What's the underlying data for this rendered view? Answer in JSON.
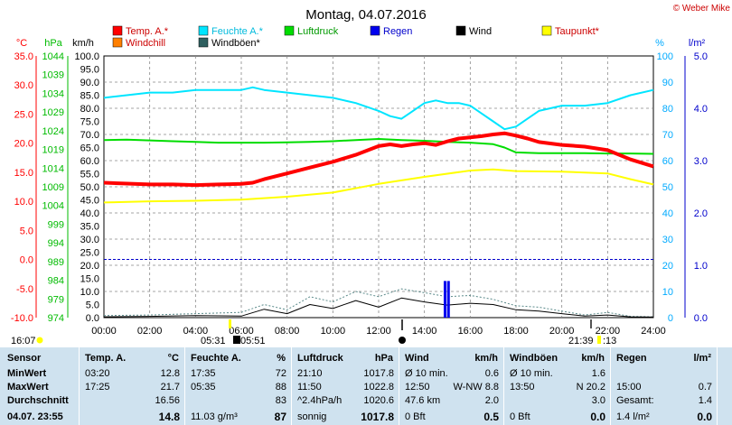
{
  "title": "Montag, 04.07.2016",
  "copyright": "© Weber Mike",
  "colors": {
    "temp": "#ff0000",
    "humidity": "#00e5ff",
    "pressure": "#00dd00",
    "rain": "#0000ee",
    "wind": "#000000",
    "dewpoint": "#ffff00",
    "windchill": "#ff7f00",
    "gust": "#2f6060",
    "axis_temp": "#ff0000",
    "axis_pressure": "#00bb00",
    "axis_right": "#00aaff",
    "axis_rain": "#0000cc",
    "table_bg": "#cfe2ef"
  },
  "axes": {
    "temp_unit": "°C",
    "pressure_unit": "hPa",
    "wind_unit": "km/h",
    "humidity_unit": "%",
    "rain_unit": "l/m²",
    "temp_ticks": [
      "35.0",
      "30.0",
      "25.0",
      "20.0",
      "15.0",
      "10.0",
      "5.0",
      "0.0",
      "-5.0",
      "-10.0"
    ],
    "pressure_ticks": [
      "1044",
      "1039",
      "1034",
      "1029",
      "1024",
      "1019",
      "1014",
      "1009",
      "1004",
      "999",
      "994",
      "989",
      "984",
      "979",
      "974"
    ],
    "wind_ticks": [
      "100.0",
      "95.0",
      "90.0",
      "85.0",
      "80.0",
      "75.0",
      "70.0",
      "65.0",
      "60.0",
      "55.0",
      "50.0",
      "45.0",
      "40.0",
      "35.0",
      "30.0",
      "25.0",
      "20.0",
      "15.0",
      "10.0",
      "5.0",
      "0.0"
    ],
    "humidity_ticks": [
      "100",
      "90",
      "80",
      "70",
      "60",
      "50",
      "40",
      "30",
      "20",
      "10",
      "0"
    ],
    "rain_ticks": [
      "5.0",
      "4.0",
      "3.0",
      "2.0",
      "1.0",
      "0.0"
    ],
    "time_ticks": [
      "00:00",
      "02:00",
      "04:00",
      "06:00",
      "08:00",
      "10:00",
      "12:00",
      "14:00",
      "16:00",
      "18:00",
      "20:00",
      "22:00",
      "24:00"
    ]
  },
  "sun": {
    "left_time": "16:07",
    "sunrise": "05:31",
    "sunrise2": "05:51",
    "sunset": "21:39",
    "sunset2": ":13"
  },
  "legend": [
    {
      "key": "temp",
      "label": "Temp. A.*"
    },
    {
      "key": "humidity",
      "label": "Feuchte A.*"
    },
    {
      "key": "pressure",
      "label": "Luftdruck"
    },
    {
      "key": "rain",
      "label": "Regen"
    },
    {
      "key": "wind",
      "label": "Wind"
    },
    {
      "key": "dewpoint",
      "label": "Taupunkt*"
    },
    {
      "key": "windchill",
      "label": "Windchill"
    },
    {
      "key": "gust",
      "label": "Windböen*"
    }
  ],
  "chart_data": {
    "type": "line",
    "title": "Montag, 04.07.2016",
    "x_range_hours": [
      0,
      24
    ],
    "series": [
      {
        "name": "Temp. A.*",
        "axis": "°C",
        "x": [
          0,
          2,
          3,
          4,
          5,
          6,
          6.5,
          7,
          8,
          9,
          10,
          11,
          12,
          12.5,
          13,
          13.5,
          14,
          14.5,
          15,
          15.5,
          16,
          16.5,
          17,
          17.5,
          18,
          18.5,
          19,
          20,
          21,
          22,
          23,
          24
        ],
        "values": [
          13.2,
          12.9,
          12.9,
          12.8,
          12.9,
          13.0,
          13.2,
          13.8,
          14.8,
          15.8,
          16.8,
          18.0,
          19.5,
          19.8,
          19.5,
          19.8,
          20.0,
          19.7,
          20.3,
          20.8,
          21.0,
          21.2,
          21.5,
          21.7,
          21.3,
          20.8,
          20.2,
          19.7,
          19.4,
          18.8,
          17.2,
          16.0
        ]
      },
      {
        "name": "Feuchte A.*",
        "axis": "%",
        "x": [
          0,
          1,
          2,
          3,
          4,
          5,
          6,
          6.5,
          7,
          8,
          9,
          10,
          11,
          12,
          12.5,
          13,
          13.5,
          14,
          14.5,
          15,
          15.5,
          16,
          16.5,
          17,
          17.5,
          18,
          18.5,
          19,
          20,
          21,
          22,
          23,
          24
        ],
        "values": [
          84,
          85,
          86,
          86,
          87,
          87,
          87,
          88,
          87,
          86,
          85,
          84,
          82,
          79,
          77,
          76,
          79,
          82,
          83,
          82,
          82,
          81,
          78,
          75,
          72,
          73,
          76,
          79,
          81,
          81,
          82,
          85,
          87
        ]
      },
      {
        "name": "Luftdruck",
        "axis": "hPa",
        "x": [
          0,
          1,
          2,
          3,
          4,
          5,
          6,
          7,
          8,
          9,
          10,
          11,
          12,
          13,
          14,
          15,
          16,
          17,
          17.5,
          18,
          19,
          20,
          21,
          22,
          23,
          24
        ],
        "values": [
          1021.5,
          1021.6,
          1021.4,
          1021.2,
          1021.0,
          1020.8,
          1020.8,
          1020.8,
          1020.9,
          1021.0,
          1021.2,
          1021.5,
          1021.8,
          1021.5,
          1021.3,
          1021.0,
          1020.8,
          1020.4,
          1019.5,
          1018.2,
          1018.0,
          1018.0,
          1018.0,
          1017.9,
          1017.9,
          1017.8
        ]
      },
      {
        "name": "Taupunkt*",
        "axis": "°C",
        "x": [
          0,
          2,
          4,
          6,
          8,
          10,
          12,
          14,
          16,
          17,
          18,
          20,
          22,
          23,
          24
        ],
        "values": [
          9.8,
          10.0,
          10.1,
          10.3,
          10.8,
          11.5,
          13.0,
          14.2,
          15.3,
          15.5,
          15.2,
          15.1,
          14.8,
          13.8,
          12.9
        ]
      },
      {
        "name": "Wind",
        "axis": "km/h",
        "x": [
          0,
          2,
          4,
          6,
          7,
          8,
          9,
          10,
          11,
          12,
          13,
          14,
          15,
          16,
          17,
          18,
          19,
          20,
          21,
          22,
          23,
          24
        ],
        "values": [
          0.3,
          0.5,
          0.8,
          0.6,
          3.2,
          1.5,
          5.0,
          3.5,
          6.5,
          4.0,
          7.5,
          6.0,
          4.8,
          5.5,
          5.0,
          3.0,
          2.5,
          1.5,
          0.6,
          1.0,
          0.3,
          0.2
        ]
      },
      {
        "name": "Windböen*",
        "axis": "km/h",
        "x": [
          0,
          2,
          4,
          6,
          7,
          8,
          9,
          10,
          11,
          12,
          13,
          14,
          15,
          16,
          17,
          18,
          19,
          20,
          21,
          22,
          23,
          24
        ],
        "values": [
          0.8,
          1.0,
          1.5,
          2.0,
          5.0,
          3.0,
          8.0,
          6.0,
          10.0,
          8.0,
          11.0,
          9.5,
          8.0,
          8.5,
          7.0,
          4.5,
          4.0,
          2.5,
          1.0,
          2.0,
          0.5,
          0.3
        ]
      },
      {
        "name": "Regen",
        "axis": "l/m²",
        "type": "bar",
        "x": [
          14.9,
          15.05
        ],
        "values": [
          0.7,
          0.7
        ]
      }
    ]
  },
  "table": {
    "col_sensor": {
      "head": "Sensor",
      "rows": [
        "MinWert",
        "MaxWert",
        "Durchschnitt"
      ],
      "footer": "04.07. 23:55"
    },
    "col_temp": {
      "head": "Temp. A.",
      "unit": "°C",
      "rows": [
        [
          "03:20",
          "12.8"
        ],
        [
          "17:25",
          "21.7"
        ],
        [
          "",
          "16.56"
        ]
      ],
      "footer": "14.8"
    },
    "col_hum": {
      "head": "Feuchte A.",
      "unit": "%",
      "rows": [
        [
          "17:35",
          "72"
        ],
        [
          "05:35",
          "88"
        ],
        [
          "",
          "83"
        ]
      ],
      "footer_left": "11.03 g/m³",
      "footer": "87"
    },
    "col_press": {
      "head": "Luftdruck",
      "unit": "hPa",
      "rows": [
        [
          "21:10",
          "1017.8"
        ],
        [
          "11:50",
          "1022.8"
        ],
        [
          "^2.4hPa/h",
          "1020.6"
        ]
      ],
      "footer_left": "sonnig",
      "footer": "1017.8"
    },
    "col_wind": {
      "head": "Wind",
      "unit": "km/h",
      "rows": [
        [
          "Ø 10 min.",
          "0.6"
        ],
        [
          "12:50",
          "W-NW 8.8"
        ],
        [
          "47.6 km",
          "2.0"
        ]
      ],
      "footer_left": "0 Bft",
      "footer": "0.5"
    },
    "col_gust": {
      "head": "Windböen",
      "unit": "km/h",
      "rows": [
        [
          "Ø 10 min.",
          "1.6"
        ],
        [
          "13:50",
          "N 20.2"
        ],
        [
          "",
          "3.0"
        ]
      ],
      "footer_left": "0 Bft",
      "footer": "0.0"
    },
    "col_rain": {
      "head": "Regen",
      "unit": "l/m²",
      "rows": [
        [
          "",
          ""
        ],
        [
          "15:00",
          "0.7"
        ],
        [
          "Gesamt:",
          "1.4"
        ]
      ],
      "footer_left": "1.4 l/m²",
      "footer": "0.0"
    }
  }
}
